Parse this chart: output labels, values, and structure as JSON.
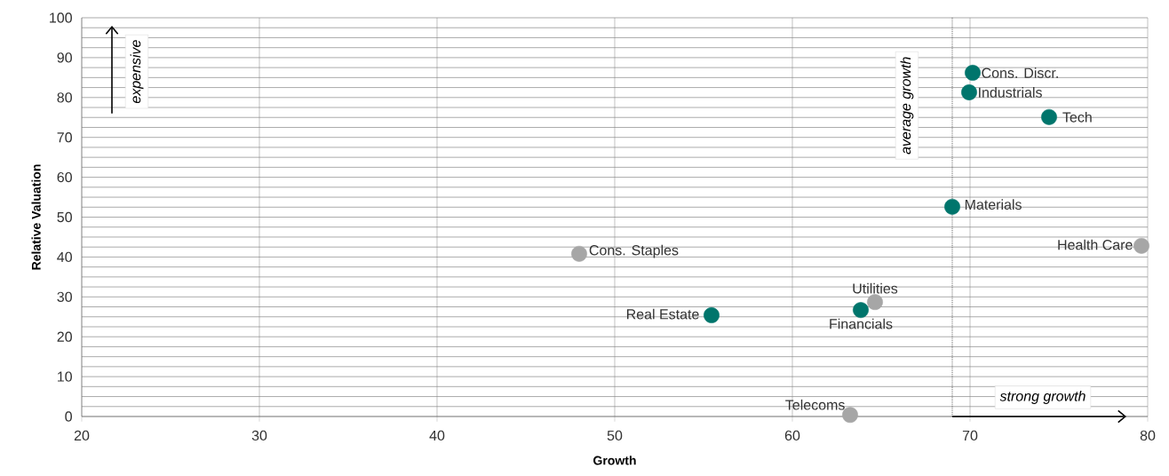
{
  "chart_data": {
    "type": "scatter",
    "xlabel": "Growth",
    "ylabel": "Relative Valuation",
    "x": [
      70.15,
      69.95,
      74.45,
      69.0,
      79.65,
      48.0,
      64.65,
      63.85,
      55.45,
      63.25
    ],
    "values": [
      86.2,
      81.3,
      75.1,
      52.6,
      42.8,
      40.8,
      28.7,
      26.7,
      25.4,
      0.4
    ],
    "colors": [
      "#00756c",
      "#00756c",
      "#00756c",
      "#00756c",
      "#a6a6a6",
      "#a6a6a6",
      "#a6a6a6",
      "#00756c",
      "#00756c",
      "#a6a6a6"
    ],
    "marker": "circle",
    "xlim": [
      20,
      80
    ],
    "xticks": [
      20,
      30,
      40,
      50,
      60,
      70,
      80
    ],
    "ylim": [
      0,
      100
    ],
    "yticks": [
      0,
      {
        "value": 2.5,
        "label": null
      },
      {
        "value": 5,
        "label": null
      },
      {
        "value": 7.5,
        "label": null
      },
      10,
      {
        "value": 12.5,
        "label": null
      },
      {
        "value": 15,
        "label": null
      },
      {
        "value": 17.5,
        "label": null
      },
      20,
      {
        "value": 22.5,
        "label": null
      },
      {
        "value": 25,
        "label": null
      },
      {
        "value": 27.5,
        "label": null
      },
      30,
      {
        "value": 32.5,
        "label": null
      },
      {
        "value": 35,
        "label": null
      },
      {
        "value": 37.5,
        "label": null
      },
      40,
      {
        "value": 42.5,
        "label": null
      },
      {
        "value": 45,
        "label": null
      },
      {
        "value": 47.5,
        "label": null
      },
      50,
      {
        "value": 52.5,
        "label": null
      },
      {
        "value": 55,
        "label": null
      },
      {
        "value": 57.5,
        "label": null
      },
      60,
      {
        "value": 62.5,
        "label": null
      },
      {
        "value": 65,
        "label": null
      },
      {
        "value": 67.5,
        "label": null
      },
      70,
      {
        "value": 72.5,
        "label": null
      },
      {
        "value": 75,
        "label": null
      },
      {
        "value": 77.5,
        "label": null
      },
      80,
      {
        "value": 82.5,
        "label": null
      },
      {
        "value": 85,
        "label": null
      },
      {
        "value": 87.5,
        "label": null
      },
      90,
      {
        "value": 92.5,
        "label": null
      },
      {
        "value": 95,
        "label": null
      },
      {
        "value": 97.5,
        "label": null
      },
      100
    ],
    "grid": true,
    "ref_lines": [
      {
        "axis": "x",
        "value": 69,
        "label": "average growth",
        "line_style": "dotted"
      }
    ],
    "annotations": [
      {
        "text": "Cons. Discr.",
        "x": 70.15,
        "y": 86.2
      },
      {
        "text": "Industrials",
        "x": 69.95,
        "y": 81.3
      },
      {
        "text": "Tech",
        "x": 74.45,
        "y": 75.1
      },
      {
        "text": "Materials",
        "x": 69.0,
        "y": 52.6
      },
      {
        "text": "Health Care",
        "x": 79.65,
        "y": 42.8
      },
      {
        "text": "Cons. Staples",
        "x": 48.0,
        "y": 40.8
      },
      {
        "text": "Utilities",
        "x": 64.65,
        "y": 28.7
      },
      {
        "text": "Financials",
        "x": 63.85,
        "y": 26.7
      },
      {
        "text": "Real Estate",
        "x": 55.45,
        "y": 25.4
      },
      {
        "text": "Telecoms",
        "x": 63.25,
        "y": 0.4
      },
      "expensive",
      "strong growth"
    ]
  }
}
